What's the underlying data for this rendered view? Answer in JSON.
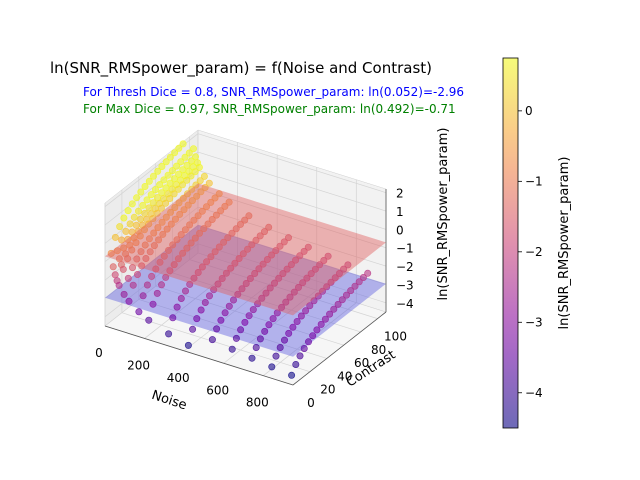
{
  "chart_data": {
    "type": "scatter3d",
    "title": "ln(SNR_RMSpower_param) = f(Noise and Contrast)",
    "annotations": [
      {
        "text": "For Thresh Dice = 0.8, SNR_RMSpower_param: ln(0.052)=-2.96",
        "color": "#0000ff"
      },
      {
        "text": "For Max Dice = 0.97, SNR_RMSpower_param: ln(0.492)=-0.71",
        "color": "#008000"
      }
    ],
    "xlabel": "Noise",
    "ylabel": "Contrast",
    "zlabel": "ln(SNR_RMSpower_param)",
    "colorbar_label": "ln(SNR_RMSpower_param)",
    "colormap": "plasma",
    "x_ticks": [
      "0",
      "200",
      "400",
      "600",
      "800"
    ],
    "y_ticks": [
      "0",
      "20",
      "40",
      "60",
      "80",
      "100"
    ],
    "z_ticks": [
      "−4",
      "−3",
      "−2",
      "−1",
      "0",
      "1",
      "2"
    ],
    "colorbar_ticks": [
      "−4",
      "−3",
      "−2",
      "−1",
      "0"
    ],
    "xlim": [
      0,
      950
    ],
    "ylim": [
      0,
      110
    ],
    "zlim": [
      -4.5,
      2.2
    ],
    "colorbar_range": [
      -4.5,
      0.75
    ],
    "planes": [
      {
        "z": -0.71,
        "color": "#e06060"
      },
      {
        "z": -2.96,
        "color": "#6060e0"
      }
    ],
    "noise_levels": [
      10,
      20,
      30,
      40,
      50,
      75,
      100,
      150,
      200,
      300,
      400,
      500,
      600,
      700,
      800,
      900
    ],
    "contrast_levels": [
      5,
      10,
      15,
      20,
      25,
      30,
      35,
      40,
      45,
      50,
      55,
      60,
      65,
      70,
      75,
      80,
      85,
      90,
      95,
      100
    ],
    "model": "z = ln(contrast / noise)"
  }
}
